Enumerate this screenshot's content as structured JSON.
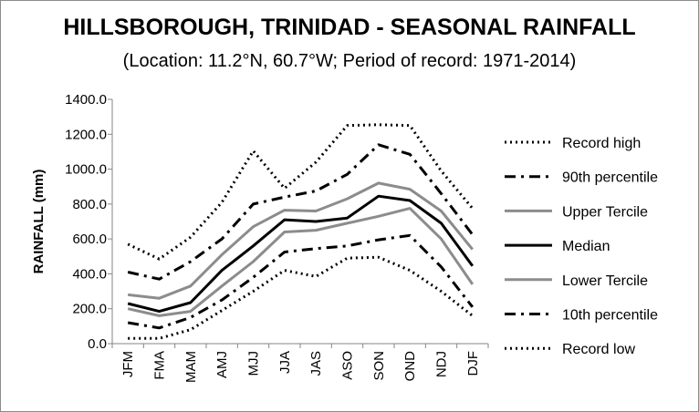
{
  "chart_data": {
    "type": "line",
    "title": "HILLSBOROUGH, TRINIDAD - SEASONAL RAINFALL",
    "subtitle": "(Location: 11.2°N, 60.7°W; Period of record: 1971-2014)",
    "xlabel": "",
    "ylabel": "RAINFALL (mm)",
    "ylim": [
      0,
      1400
    ],
    "yticks": [
      "0.0",
      "200.0",
      "400.0",
      "600.0",
      "800.0",
      "1000.0",
      "1200.0",
      "1400.0"
    ],
    "categories": [
      "JFM",
      "FMA",
      "MAM",
      "AMJ",
      "MJJ",
      "JJA",
      "JAS",
      "ASO",
      "SON",
      "OND",
      "NDJ",
      "DJF"
    ],
    "grid": false,
    "legend_position": "right",
    "series": [
      {
        "name": "Record high",
        "color": "#000000",
        "style": "dotted",
        "values": [
          570,
          485,
          610,
          810,
          1105,
          890,
          1040,
          1250,
          1255,
          1250,
          990,
          775
        ]
      },
      {
        "name": "90th percentile",
        "color": "#000000",
        "style": "dashdot",
        "values": [
          410,
          370,
          470,
          600,
          800,
          840,
          875,
          970,
          1140,
          1085,
          860,
          625
        ]
      },
      {
        "name": "Upper Tercile",
        "color": "#8c8c8c",
        "style": "solid",
        "values": [
          280,
          260,
          330,
          510,
          670,
          765,
          760,
          830,
          920,
          885,
          760,
          540
        ]
      },
      {
        "name": "Median",
        "color": "#000000",
        "style": "solid",
        "values": [
          230,
          185,
          235,
          420,
          560,
          710,
          700,
          720,
          845,
          820,
          690,
          445
        ]
      },
      {
        "name": "Lower Tercile",
        "color": "#8c8c8c",
        "style": "solid",
        "values": [
          200,
          160,
          185,
          330,
          470,
          640,
          650,
          690,
          730,
          775,
          600,
          340
        ]
      },
      {
        "name": "10th percentile",
        "color": "#000000",
        "style": "dashdot",
        "values": [
          120,
          90,
          150,
          250,
          380,
          525,
          545,
          560,
          595,
          620,
          440,
          210
        ]
      },
      {
        "name": "Record low",
        "color": "#000000",
        "style": "dotted",
        "values": [
          30,
          30,
          80,
          190,
          300,
          420,
          385,
          490,
          495,
          420,
          300,
          160
        ]
      }
    ]
  }
}
